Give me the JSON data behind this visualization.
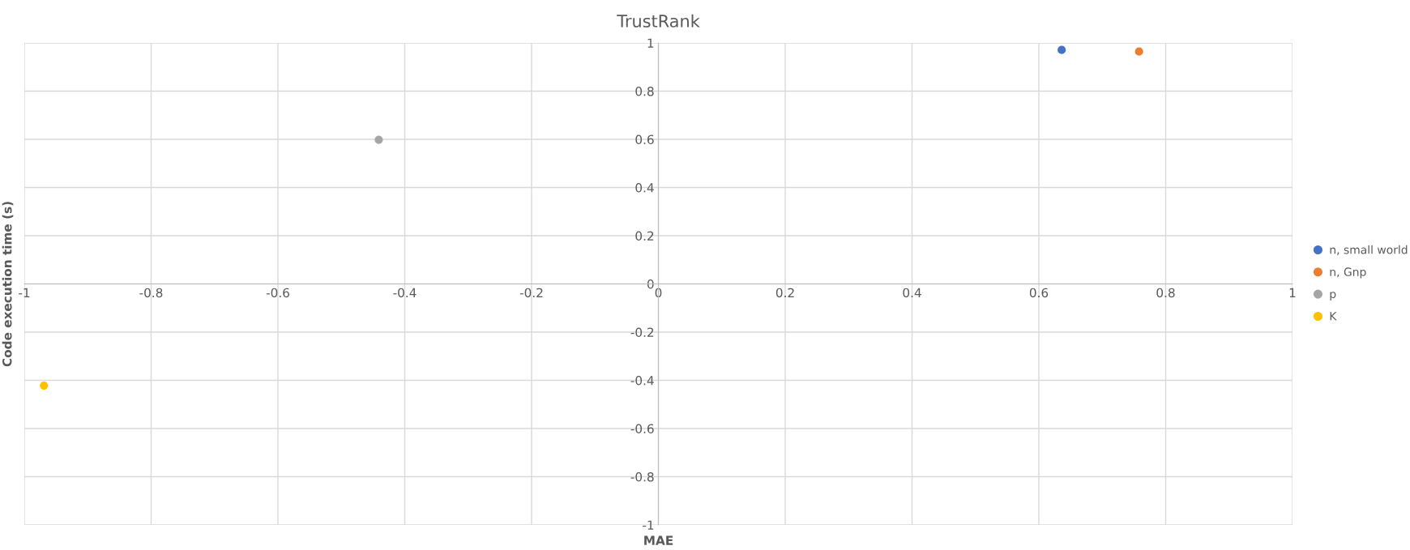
{
  "chart_data": {
    "type": "scatter",
    "title": "TrustRank",
    "xlabel": "MAE",
    "ylabel": "Code execution time (s)",
    "series": [
      {
        "name": "n, small world",
        "color": "#4472c4",
        "x": [
          0.636
        ],
        "values": [
          0.971
        ]
      },
      {
        "name": "n, Gnp",
        "color": "#ed7d31",
        "x": [
          0.758
        ],
        "values": [
          0.964
        ]
      },
      {
        "name": "p",
        "color": "#a5a5a5",
        "x": [
          -0.441
        ],
        "values": [
          0.598
        ]
      },
      {
        "name": "K",
        "color": "#ffc000",
        "x": [
          -0.969
        ],
        "values": [
          -0.422
        ]
      }
    ],
    "xlim": [
      -1,
      1
    ],
    "ylim": [
      -1,
      1
    ],
    "xticks": [
      -1,
      -0.8,
      -0.6,
      -0.4,
      -0.2,
      0,
      0.2,
      0.4,
      0.6,
      0.8,
      1
    ],
    "yticks": [
      -1,
      -0.8,
      -0.6,
      -0.4,
      -0.2,
      0,
      0.2,
      0.4,
      0.6,
      0.8,
      1
    ],
    "grid": true,
    "legend": "right",
    "marker": "circle"
  }
}
